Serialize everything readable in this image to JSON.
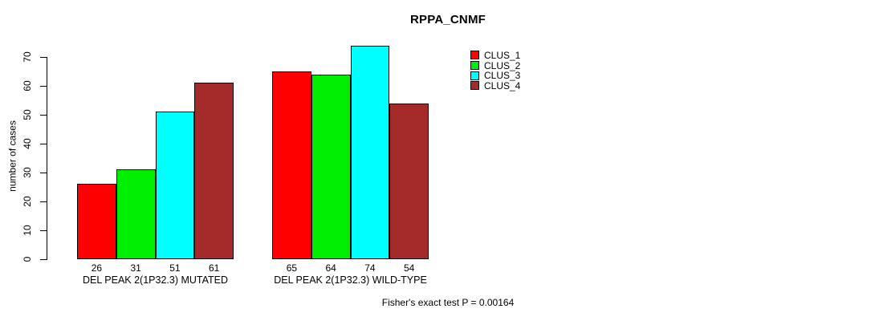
{
  "chart_data": {
    "type": "bar",
    "title": "RPPA_CNMF",
    "xlabel": "",
    "ylabel": "number of cases",
    "ylim": [
      0,
      70
    ],
    "yticks": [
      0,
      10,
      20,
      30,
      40,
      50,
      60,
      70
    ],
    "grid": false,
    "legend_position": "right-top",
    "bar_value_labels": true,
    "groups": [
      {
        "label": "DEL PEAK 2(1P32.3) MUTATED",
        "values": [
          26,
          31,
          51,
          61
        ]
      },
      {
        "label": "DEL PEAK 2(1P32.3) WILD-TYPE",
        "values": [
          65,
          64,
          74,
          54
        ]
      }
    ],
    "series": [
      {
        "name": "CLUS_1",
        "color": "#ff0000",
        "values": [
          26,
          65
        ]
      },
      {
        "name": "CLUS_2",
        "color": "#00ee00",
        "values": [
          31,
          64
        ]
      },
      {
        "name": "CLUS_3",
        "color": "#00ffff",
        "values": [
          51,
          74
        ]
      },
      {
        "name": "CLUS_4",
        "color": "#a52a2a",
        "values": [
          61,
          54
        ]
      }
    ],
    "annotation": "Fisher's exact test P = 0.00164"
  },
  "colors": {
    "axis": "#000000",
    "text": "#000000",
    "background": "#ffffff"
  }
}
